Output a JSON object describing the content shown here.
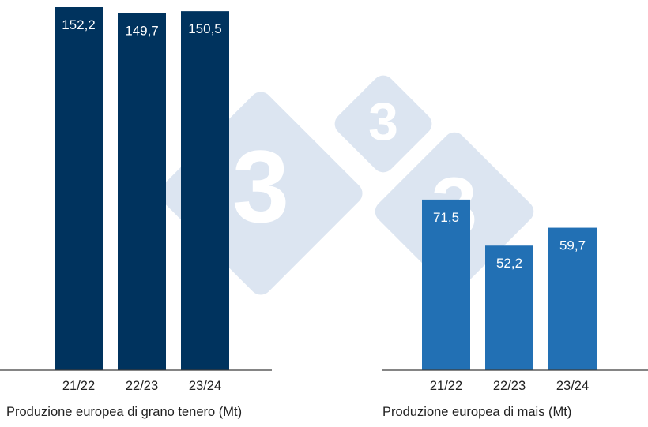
{
  "chart_data": [
    {
      "type": "bar",
      "title": "Produzione europea di grano tenero (Mt)",
      "categories": [
        "21/22",
        "22/23",
        "23/24"
      ],
      "values": [
        152.2,
        149.7,
        150.5
      ],
      "value_labels": [
        "152,2",
        "149,7",
        "150,5"
      ],
      "unit": "Mt",
      "color": "#00335e",
      "ylim": [
        0,
        152.2
      ],
      "grid": false
    },
    {
      "type": "bar",
      "title": "Produzione europea di mais (Mt)",
      "categories": [
        "21/22",
        "22/23",
        "23/24"
      ],
      "values": [
        71.5,
        52.2,
        59.7
      ],
      "value_labels": [
        "71,5",
        "52,2",
        "59,7"
      ],
      "unit": "Mt",
      "color": "#2270b4",
      "ylim": [
        0,
        152.2
      ],
      "grid": false
    }
  ],
  "watermark": {
    "text": "3",
    "color": "#dce5f1"
  }
}
